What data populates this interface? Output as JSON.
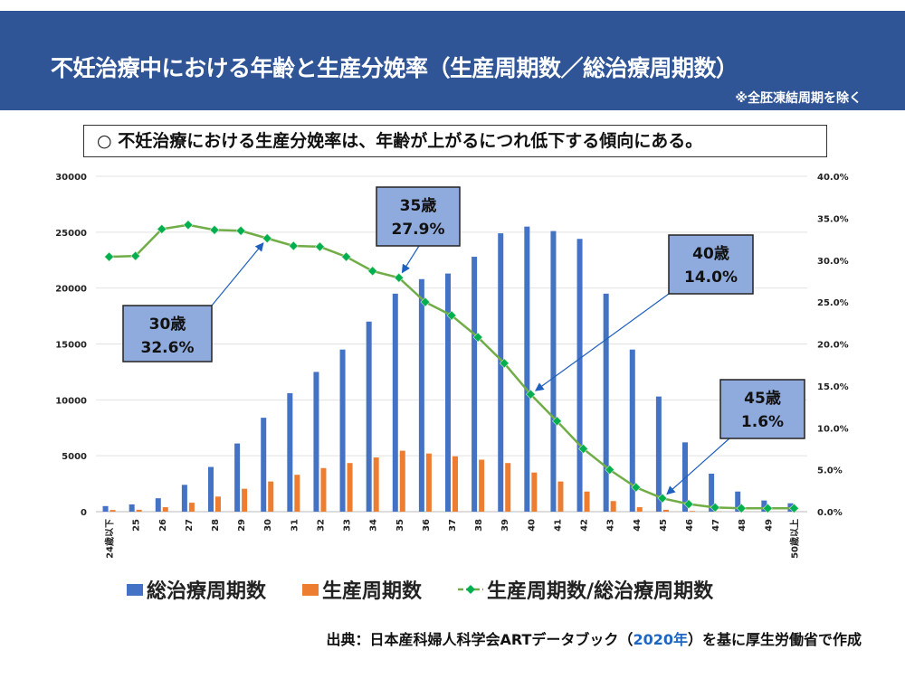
{
  "header": {
    "title": "不妊治療中における年齢と生産分娩率（生産周期数／総治療周期数）",
    "note": "※全胚凍結周期を除く"
  },
  "summary": "○ 不妊治療における生産分娩率は、年齢が上がるにつれ低下する傾向にある。",
  "source": {
    "prefix": "出典：日本産科婦人科学会ARTデータブック（",
    "year": "2020年",
    "suffix": "）を基に厚生労働省で作成"
  },
  "colors": {
    "header_bg": "#2F5597",
    "total": "#4472C4",
    "births": "#ED7D31",
    "rate_line": "#70AD47",
    "rate_marker": "#00B050",
    "callout_bg": "#8FAADC"
  },
  "chart_data": {
    "type": "bar+line",
    "categories": [
      "24歳以下",
      "25",
      "26",
      "27",
      "28",
      "29",
      "30",
      "31",
      "32",
      "33",
      "34",
      "35",
      "36",
      "37",
      "38",
      "39",
      "40",
      "41",
      "42",
      "43",
      "44",
      "45",
      "46",
      "47",
      "48",
      "49",
      "50歳以上"
    ],
    "series": [
      {
        "name": "総治療周期数",
        "type": "bar",
        "axis": "left",
        "values": [
          500,
          650,
          1200,
          2400,
          4000,
          6100,
          8400,
          10600,
          12500,
          14500,
          17000,
          19500,
          20800,
          21300,
          22800,
          24900,
          25500,
          25100,
          24400,
          19500,
          14500,
          10300,
          6200,
          3400,
          1800,
          1000,
          750
        ]
      },
      {
        "name": "生産周期数",
        "type": "bar",
        "axis": "left",
        "values": [
          150,
          170,
          400,
          800,
          1350,
          2050,
          2700,
          3300,
          3900,
          4350,
          4850,
          5450,
          5200,
          4950,
          4650,
          4350,
          3500,
          2700,
          1800,
          950,
          400,
          170,
          60,
          20,
          10,
          5,
          5
        ]
      },
      {
        "name": "生産周期数/総治療周期数",
        "type": "line",
        "axis": "right",
        "values": [
          30.4,
          30.5,
          33.7,
          34.2,
          33.6,
          33.5,
          32.6,
          31.7,
          31.6,
          30.4,
          28.7,
          27.9,
          25.0,
          23.4,
          20.8,
          17.7,
          14.0,
          10.8,
          7.5,
          5.0,
          2.9,
          1.6,
          0.9,
          0.5,
          0.4,
          0.4,
          0.4
        ]
      }
    ],
    "left_axis": {
      "ylim": [
        0,
        30000
      ],
      "ticks": [
        "0",
        "5000",
        "10000",
        "15000",
        "20000",
        "25000",
        "30000"
      ]
    },
    "right_axis": {
      "ylim": [
        0,
        40
      ],
      "ticks": [
        "0.0%",
        "5.0%",
        "10.0%",
        "15.0%",
        "20.0%",
        "25.0%",
        "30.0%",
        "35.0%",
        "40.0%"
      ]
    },
    "grid": true,
    "legend_position": "bottom",
    "annotations": [
      {
        "age_label": "30歳",
        "value_label": "32.6%",
        "category": "30"
      },
      {
        "age_label": "35歳",
        "value_label": "27.9%",
        "category": "35"
      },
      {
        "age_label": "40歳",
        "value_label": "14.0%",
        "category": "40"
      },
      {
        "age_label": "45歳",
        "value_label": "1.6%",
        "category": "45"
      }
    ]
  }
}
